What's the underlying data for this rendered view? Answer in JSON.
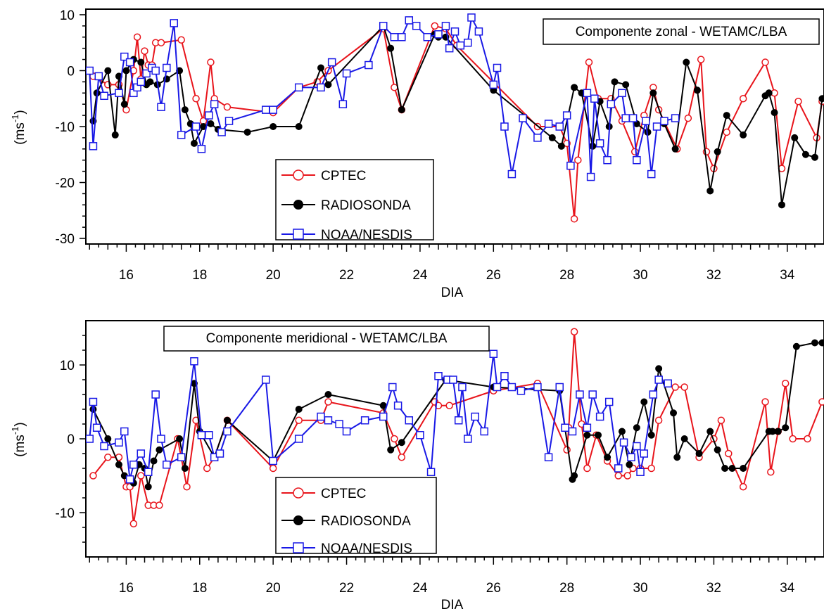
{
  "chart_data": [
    {
      "type": "line",
      "title": "Componente zonal - WETAMC/LBA",
      "xlabel": "DIA",
      "ylabel": "(ms",
      "ylabel_sup": "-1",
      "ylabel_close": ")",
      "xlim": [
        14.9,
        35.0
      ],
      "ylim": [
        -31,
        11
      ],
      "xticks": [
        16,
        18,
        20,
        22,
        24,
        26,
        28,
        30,
        32,
        34
      ],
      "yticks": [
        10,
        0,
        -10,
        -20,
        -30
      ],
      "legend_position": "bottom-left",
      "series": [
        {
          "name": "CPTEC",
          "color": "#e8141b",
          "marker": "open-circle",
          "x": [
            15.1,
            15.5,
            15.8,
            16.0,
            16.2,
            16.3,
            16.4,
            16.5,
            16.6,
            16.7,
            16.8,
            16.95,
            17.5,
            17.9,
            18.1,
            18.3,
            18.4,
            18.75,
            20.0,
            20.7,
            21.2,
            21.5,
            23.0,
            23.3,
            23.5,
            24.4,
            24.7,
            25.0,
            27.2,
            27.8,
            28.0,
            28.2,
            28.3,
            28.6,
            28.85,
            29.2,
            29.5,
            29.85,
            30.1,
            30.35,
            30.5,
            31.0,
            31.3,
            31.65,
            31.8,
            32.0,
            32.35,
            32.8,
            33.4,
            33.65,
            33.85,
            34.3,
            34.8,
            34.95
          ],
          "y": [
            -1,
            -2.5,
            -2.5,
            -7,
            0,
            6,
            -1.5,
            3.5,
            1,
            1,
            5,
            5,
            5.5,
            -5,
            -9,
            1.5,
            -5,
            -6.5,
            -7.5,
            -3,
            -2,
            0,
            7.5,
            -3,
            -7,
            8,
            7.5,
            4.5,
            -10,
            -10,
            -13,
            -26.5,
            -16,
            1.5,
            -5,
            -5,
            -9,
            -14.5,
            -8,
            -3,
            -7,
            -14,
            -8.5,
            2,
            -14.5,
            -17.5,
            -11,
            -5,
            1.5,
            -4,
            -17.5,
            -5.5,
            -12,
            -5.5
          ]
        },
        {
          "name": "RADIOSONDA",
          "color": "#000000",
          "marker": "filled-circle",
          "x": [
            15.1,
            15.2,
            15.5,
            15.7,
            15.8,
            15.95,
            16.0,
            16.2,
            16.4,
            16.55,
            16.65,
            16.85,
            17.1,
            17.45,
            17.6,
            17.75,
            17.85,
            18.1,
            18.3,
            18.5,
            19.3,
            20.0,
            20.7,
            21.3,
            21.5,
            23.0,
            23.2,
            23.5,
            24.4,
            24.5,
            24.7,
            26.0,
            27.6,
            27.85,
            28.2,
            28.4,
            28.7,
            28.9,
            29.15,
            29.3,
            29.6,
            29.9,
            30.2,
            30.35,
            30.65,
            30.95,
            31.25,
            31.55,
            31.9,
            32.1,
            32.35,
            32.8,
            33.4,
            33.5,
            33.65,
            33.85,
            34.2,
            34.5,
            34.75,
            34.95
          ],
          "y": [
            -9,
            -4,
            0,
            -11.5,
            -1,
            -6,
            0,
            2,
            1.5,
            -2.5,
            -2,
            -2.5,
            -1.5,
            0,
            -7,
            -9.5,
            -13,
            -10,
            -9.5,
            -10.5,
            -11,
            -10,
            -10,
            0.5,
            -2.5,
            8,
            4,
            -7,
            6.5,
            6,
            6,
            -3.5,
            -12,
            -13.5,
            -3,
            -4,
            -13.5,
            -5.5,
            -10,
            -2,
            -2.5,
            -9.5,
            -11,
            -4,
            -9.5,
            -14,
            1.5,
            -3.5,
            -21.5,
            -14.5,
            -8,
            -11.5,
            -4.5,
            -4,
            -7.5,
            -24,
            -12,
            -15,
            -15.5,
            -5
          ]
        },
        {
          "name": "NOAA/NESDIS",
          "color": "#1919e6",
          "marker": "open-square",
          "x": [
            15.0,
            15.1,
            15.25,
            15.4,
            15.8,
            15.95,
            16.1,
            16.2,
            16.3,
            16.4,
            16.55,
            16.7,
            16.8,
            16.95,
            17.1,
            17.3,
            17.5,
            17.9,
            18.05,
            18.25,
            18.4,
            18.6,
            18.8,
            19.8,
            20.0,
            20.7,
            21.3,
            21.6,
            21.9,
            22.0,
            22.6,
            23.0,
            23.3,
            23.5,
            23.7,
            23.9,
            24.2,
            24.5,
            24.7,
            24.8,
            24.95,
            25.1,
            25.3,
            25.4,
            25.6,
            26.0,
            26.1,
            26.3,
            26.5,
            26.8,
            27.2,
            27.5,
            27.8,
            28.0,
            28.1,
            28.55,
            28.65,
            28.75,
            28.9,
            29.1,
            29.2,
            29.5,
            29.6,
            29.8,
            29.9,
            30.15,
            30.3,
            30.45,
            30.65,
            30.95
          ],
          "y": [
            0,
            -13.5,
            -1,
            -4.5,
            -4,
            2.5,
            1.5,
            -4,
            -3,
            -2,
            -0.5,
            0.5,
            0,
            -6.5,
            0.5,
            8.5,
            -11.5,
            -10,
            -14,
            -8,
            -6,
            -11,
            -9,
            -7,
            -7,
            -3,
            -3,
            1.5,
            -6,
            -0.5,
            1,
            8,
            6,
            6,
            9,
            8,
            6,
            6.5,
            8,
            4,
            7,
            4.5,
            5,
            9.5,
            7,
            -2.5,
            0.5,
            -10,
            -18.5,
            -8.5,
            -12,
            -9.5,
            -10,
            -8,
            -17,
            -4,
            -19,
            -5,
            -13,
            -16,
            -6,
            -4,
            -8.5,
            -8.5,
            -16,
            -9,
            -18.5,
            -10,
            -9,
            -8.5
          ]
        }
      ]
    },
    {
      "type": "line",
      "title": "Componente meridional  - WETAMC/LBA",
      "xlabel": "DIA",
      "ylabel": "(ms",
      "ylabel_sup": "-1",
      "ylabel_close": ")",
      "xlim": [
        14.9,
        35.0
      ],
      "ylim": [
        -16,
        16
      ],
      "xticks": [
        16,
        18,
        20,
        22,
        24,
        26,
        28,
        30,
        32,
        34
      ],
      "yticks": [
        10,
        0,
        -10
      ],
      "legend_position": "bottom-left",
      "series": [
        {
          "name": "CPTEC",
          "color": "#e8141b",
          "marker": "open-circle",
          "x": [
            15.1,
            15.5,
            15.8,
            16.0,
            16.1,
            16.2,
            16.4,
            16.6,
            16.75,
            16.9,
            17.4,
            17.65,
            17.9,
            18.2,
            18.4,
            18.75,
            20.0,
            20.7,
            21.3,
            21.5,
            23.0,
            23.3,
            23.5,
            24.4,
            24.5,
            24.8,
            26.0,
            27.2,
            28.0,
            28.05,
            28.2,
            28.4,
            28.55,
            28.8,
            29.1,
            29.4,
            29.65,
            29.8,
            30.0,
            30.3,
            30.5,
            30.95,
            31.2,
            31.6,
            32.0,
            32.2,
            32.4,
            32.8,
            33.4,
            33.55,
            33.75,
            33.95,
            34.15,
            34.55,
            34.95
          ],
          "y": [
            -5,
            -2.5,
            -2.5,
            -6.5,
            -6.5,
            -11.5,
            -5,
            -9,
            -9,
            -9,
            0,
            -6.5,
            2.5,
            -4,
            -2.5,
            2.5,
            -4,
            2.5,
            2.5,
            5,
            3.5,
            0,
            -2.5,
            5,
            4.5,
            4.5,
            6.5,
            7.5,
            -1.5,
            1.5,
            14.5,
            2,
            -4,
            0.5,
            -3,
            -5,
            -5,
            -4,
            -4,
            -4,
            2.5,
            7,
            7,
            -2.5,
            0,
            2.5,
            -2,
            -6.5,
            5,
            -4.5,
            1,
            7.5,
            0,
            0,
            5
          ]
        },
        {
          "name": "RADIOSONDA",
          "color": "#000000",
          "marker": "filled-circle",
          "x": [
            15.1,
            15.5,
            15.8,
            15.95,
            16.1,
            16.2,
            16.35,
            16.5,
            16.6,
            16.75,
            16.9,
            17.45,
            17.6,
            17.85,
            18.0,
            18.4,
            18.75,
            20.0,
            20.7,
            21.5,
            23.0,
            23.2,
            23.5,
            24.7,
            26.0,
            27.8,
            28.15,
            28.2,
            28.55,
            28.85,
            29.1,
            29.5,
            29.7,
            29.9,
            30.1,
            30.3,
            30.5,
            30.9,
            31.0,
            31.2,
            31.6,
            31.9,
            32.1,
            32.3,
            32.5,
            32.8,
            33.5,
            33.6,
            33.75,
            33.95,
            34.25,
            34.75,
            34.95
          ],
          "y": [
            4,
            0,
            -3.5,
            -5,
            -5.5,
            -6,
            -3.5,
            -4,
            -6.5,
            -3,
            -1.5,
            0,
            -4,
            7.5,
            1,
            -2.5,
            2.5,
            -3,
            4,
            6,
            4.5,
            -1.5,
            -0.5,
            8,
            7,
            6.5,
            -5.5,
            -5,
            0.5,
            0.5,
            -2.5,
            1,
            -3.5,
            1.5,
            5,
            0.5,
            9.5,
            3.5,
            -2.5,
            0,
            -2,
            1,
            -1.5,
            -4,
            -4,
            -4,
            1,
            1,
            1,
            1.5,
            12.5,
            13,
            13
          ]
        },
        {
          "name": "NOAA/NESDIS",
          "color": "#1919e6",
          "marker": "open-square",
          "x": [
            15.0,
            15.1,
            15.2,
            15.4,
            15.8,
            15.95,
            16.1,
            16.2,
            16.4,
            16.6,
            16.8,
            16.95,
            17.1,
            17.5,
            17.85,
            18.05,
            18.25,
            18.4,
            18.55,
            18.75,
            19.8,
            20.0,
            20.7,
            21.3,
            21.5,
            21.8,
            22.0,
            22.5,
            23.0,
            23.25,
            23.4,
            23.7,
            24.0,
            24.3,
            24.5,
            24.75,
            24.9,
            25.05,
            25.15,
            25.3,
            25.5,
            25.75,
            26.0,
            26.1,
            26.3,
            26.5,
            26.75,
            27.2,
            27.5,
            27.8,
            27.95,
            28.15,
            28.35,
            28.55,
            28.7,
            28.9,
            29.15,
            29.4,
            29.55,
            29.75,
            29.9,
            30.0,
            30.1,
            30.35,
            30.5,
            30.75
          ],
          "y": [
            0,
            5,
            1.5,
            -1,
            -0.5,
            1,
            -5.5,
            -3.5,
            -2,
            -4.5,
            6,
            0,
            -3.5,
            -2.5,
            10.5,
            0.5,
            0.5,
            -2.5,
            -2,
            1,
            8,
            -3,
            0,
            3,
            2.5,
            2,
            1,
            2.5,
            3,
            7,
            4.5,
            2.5,
            0.5,
            -4.5,
            8.5,
            8,
            8,
            2.5,
            7,
            0,
            3,
            1,
            11.5,
            7,
            8.5,
            7,
            6.5,
            7,
            -2.5,
            7,
            1.5,
            1,
            6,
            1.5,
            6,
            3,
            5,
            -4,
            -0.5,
            -2.5,
            -1,
            -4.5,
            -2,
            6,
            8,
            7.5
          ]
        }
      ]
    }
  ]
}
